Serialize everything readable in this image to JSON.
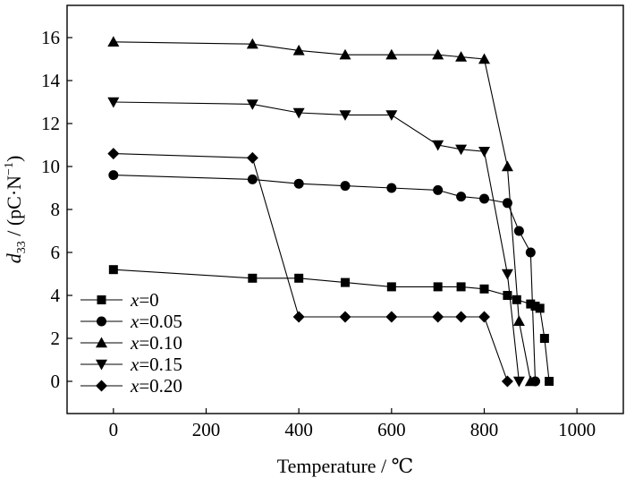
{
  "chart_data": {
    "type": "line",
    "xlabel": "Temperature / ℃",
    "ylabel": {
      "symbol": "d",
      "subscript": "33",
      "unit": " / (pC·N",
      "exponent": "−1",
      "close": ")"
    },
    "xlim": [
      -100,
      1100
    ],
    "ylim": [
      -1.5,
      17.5
    ],
    "xticks": [
      0,
      200,
      400,
      600,
      800,
      1000
    ],
    "yticks": [
      0,
      2,
      4,
      6,
      8,
      10,
      12,
      14,
      16
    ],
    "legend_position": "bottom-left",
    "series": [
      {
        "name": "x=0",
        "name_var": "x",
        "name_val": "=0",
        "marker": "square",
        "x": [
          0,
          300,
          400,
          500,
          600,
          700,
          750,
          800,
          850,
          870,
          900,
          910,
          920,
          930,
          940
        ],
        "y": [
          5.2,
          4.8,
          4.8,
          4.6,
          4.4,
          4.4,
          4.4,
          4.3,
          4.0,
          3.8,
          3.6,
          3.5,
          3.4,
          2.0,
          0.0
        ]
      },
      {
        "name": "x=0.05",
        "name_var": "x",
        "name_val": "=0.05",
        "marker": "circle",
        "x": [
          0,
          300,
          400,
          500,
          600,
          700,
          750,
          800,
          850,
          875,
          900,
          910
        ],
        "y": [
          9.6,
          9.4,
          9.2,
          9.1,
          9.0,
          8.9,
          8.6,
          8.5,
          8.3,
          7.0,
          6.0,
          0.0
        ]
      },
      {
        "name": "x=0.10",
        "name_var": "x",
        "name_val": "=0.10",
        "marker": "triangle-up",
        "x": [
          0,
          300,
          400,
          500,
          600,
          700,
          750,
          800,
          850,
          875,
          900
        ],
        "y": [
          15.8,
          15.7,
          15.4,
          15.2,
          15.2,
          15.2,
          15.1,
          15.0,
          10.0,
          2.8,
          0.0
        ]
      },
      {
        "name": "x=0.15",
        "name_var": "x",
        "name_val": "=0.15",
        "marker": "triangle-down",
        "x": [
          0,
          300,
          400,
          500,
          600,
          700,
          750,
          800,
          850,
          875
        ],
        "y": [
          13.0,
          12.9,
          12.5,
          12.4,
          12.4,
          11.0,
          10.8,
          10.7,
          5.0,
          0.0
        ]
      },
      {
        "name": "x=0.20",
        "name_var": "x",
        "name_val": "=0.20",
        "marker": "diamond",
        "x": [
          0,
          300,
          400,
          500,
          600,
          700,
          750,
          800,
          850
        ],
        "y": [
          10.6,
          10.4,
          3.0,
          3.0,
          3.0,
          3.0,
          3.0,
          3.0,
          0.0
        ]
      }
    ]
  }
}
